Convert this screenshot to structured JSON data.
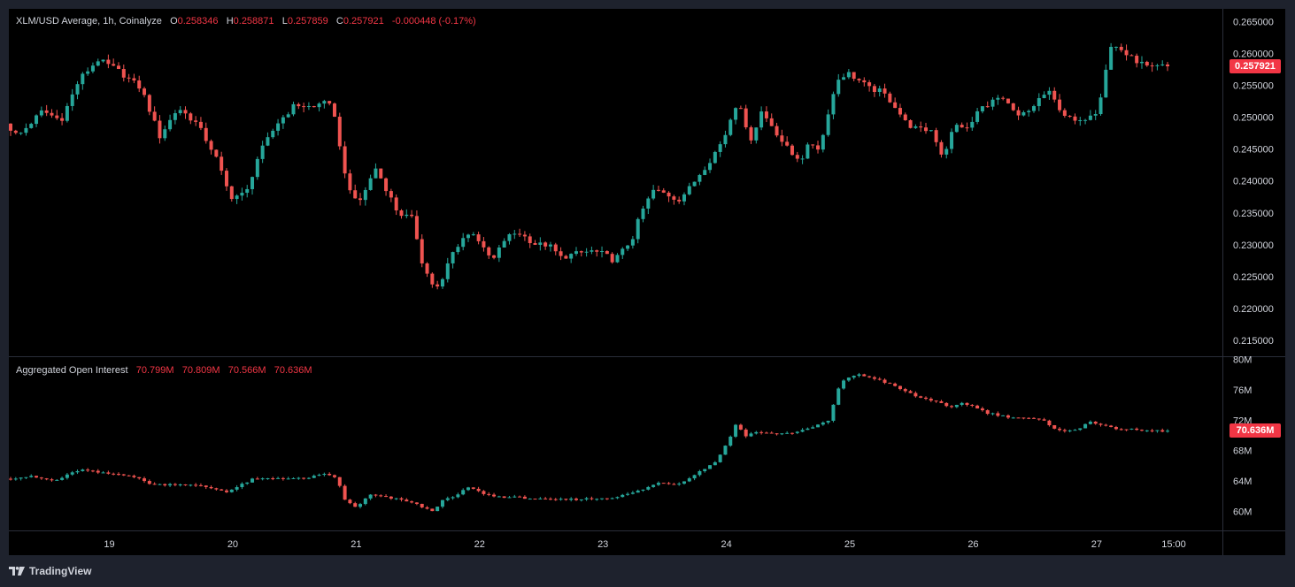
{
  "chart_data": [
    {
      "type": "candlestick",
      "title": "XLM/USD Average, 1h, Coinalyze",
      "legend": {
        "O": "0.258346",
        "H": "0.258871",
        "L": "0.257859",
        "C": "0.257921",
        "change": "-0.000448 (-0.17%)"
      },
      "last_value_label": "0.257921",
      "last_value": 0.257921,
      "yticks": [
        "0.265000",
        "0.260000",
        "0.255000",
        "0.250000",
        "0.245000",
        "0.240000",
        "0.235000",
        "0.230000",
        "0.225000",
        "0.220000",
        "0.215000"
      ],
      "ylim": [
        0.2125,
        0.267
      ],
      "anchors": [
        [
          18.0,
          0.249
        ],
        [
          18.1,
          0.247
        ],
        [
          18.3,
          0.251
        ],
        [
          18.45,
          0.2495
        ],
        [
          18.6,
          0.256
        ],
        [
          18.75,
          0.259
        ],
        [
          18.9,
          0.2575
        ],
        [
          19.1,
          0.2545
        ],
        [
          19.25,
          0.247
        ],
        [
          19.4,
          0.2515
        ],
        [
          19.55,
          0.249
        ],
        [
          19.7,
          0.244
        ],
        [
          19.82,
          0.2375
        ],
        [
          19.95,
          0.238
        ],
        [
          20.05,
          0.244
        ],
        [
          20.2,
          0.249
        ],
        [
          20.35,
          0.252
        ],
        [
          20.5,
          0.2515
        ],
        [
          20.6,
          0.253
        ],
        [
          20.68,
          0.249
        ],
        [
          20.75,
          0.241
        ],
        [
          20.85,
          0.236
        ],
        [
          20.95,
          0.24
        ],
        [
          21.0,
          0.242
        ],
        [
          21.08,
          0.239
        ],
        [
          21.18,
          0.235
        ],
        [
          21.3,
          0.234
        ],
        [
          21.38,
          0.227
        ],
        [
          21.45,
          0.224
        ],
        [
          21.52,
          0.223
        ],
        [
          21.6,
          0.228
        ],
        [
          21.7,
          0.231
        ],
        [
          21.8,
          0.232
        ],
        [
          21.88,
          0.229
        ],
        [
          21.95,
          0.2275
        ],
        [
          22.05,
          0.231
        ],
        [
          22.15,
          0.232
        ],
        [
          22.3,
          0.23
        ],
        [
          22.4,
          0.23
        ],
        [
          22.5,
          0.228
        ],
        [
          22.6,
          0.2285
        ],
        [
          22.75,
          0.229
        ],
        [
          22.85,
          0.2285
        ],
        [
          22.93,
          0.2275
        ],
        [
          23.0,
          0.229
        ],
        [
          23.08,
          0.231
        ],
        [
          23.15,
          0.235
        ],
        [
          23.25,
          0.2385
        ],
        [
          23.35,
          0.238
        ],
        [
          23.45,
          0.237
        ],
        [
          23.55,
          0.239
        ],
        [
          23.62,
          0.241
        ],
        [
          23.7,
          0.243
        ],
        [
          23.8,
          0.246
        ],
        [
          23.85,
          0.248
        ],
        [
          23.9,
          0.2515
        ],
        [
          23.95,
          0.2525
        ],
        [
          24.0,
          0.248
        ],
        [
          24.05,
          0.2465
        ],
        [
          24.12,
          0.251
        ],
        [
          24.2,
          0.249
        ],
        [
          24.3,
          0.246
        ],
        [
          24.38,
          0.244
        ],
        [
          24.45,
          0.2435
        ],
        [
          24.52,
          0.246
        ],
        [
          24.6,
          0.245
        ],
        [
          24.68,
          0.252
        ],
        [
          24.75,
          0.256
        ],
        [
          24.82,
          0.257
        ],
        [
          24.9,
          0.256
        ],
        [
          25.0,
          0.2545
        ],
        [
          25.1,
          0.254
        ],
        [
          25.2,
          0.252
        ],
        [
          25.3,
          0.249
        ],
        [
          25.4,
          0.248
        ],
        [
          25.5,
          0.248
        ],
        [
          25.55,
          0.246
        ],
        [
          25.6,
          0.2435
        ],
        [
          25.65,
          0.247
        ],
        [
          25.72,
          0.249
        ],
        [
          25.8,
          0.248
        ],
        [
          25.88,
          0.251
        ],
        [
          25.95,
          0.252
        ],
        [
          26.05,
          0.253
        ],
        [
          26.12,
          0.252
        ],
        [
          26.2,
          0.25
        ],
        [
          26.3,
          0.251
        ],
        [
          26.38,
          0.253
        ],
        [
          26.45,
          0.254
        ],
        [
          26.52,
          0.252
        ],
        [
          26.6,
          0.25
        ],
        [
          26.7,
          0.249
        ],
        [
          26.78,
          0.2505
        ],
        [
          26.85,
          0.251
        ],
        [
          26.9,
          0.256
        ],
        [
          26.95,
          0.261
        ],
        [
          27.02,
          0.261
        ],
        [
          27.1,
          0.2595
        ],
        [
          27.2,
          0.2585
        ],
        [
          27.28,
          0.2575
        ],
        [
          27.35,
          0.258
        ],
        [
          27.42,
          0.2579
        ]
      ]
    },
    {
      "type": "candlestick",
      "title": "Aggregated Open Interest",
      "legend": {
        "O": "70.799M",
        "H": "70.809M",
        "L": "70.566M",
        "C": "70.636M"
      },
      "last_value_label": "70.636M",
      "last_value": 70.636,
      "yticks": [
        "80M",
        "76M",
        "72M",
        "68M",
        "64M",
        "60M"
      ],
      "ylim": [
        57.5,
        80.3
      ],
      "anchors": [
        [
          18.0,
          64.3
        ],
        [
          18.2,
          64.6
        ],
        [
          18.4,
          64.0
        ],
        [
          18.6,
          65.5
        ],
        [
          18.8,
          65.0
        ],
        [
          19.0,
          64.8
        ],
        [
          19.2,
          63.5
        ],
        [
          19.4,
          63.6
        ],
        [
          19.6,
          63.3
        ],
        [
          19.8,
          62.6
        ],
        [
          20.0,
          64.2
        ],
        [
          20.2,
          64.4
        ],
        [
          20.4,
          64.3
        ],
        [
          20.6,
          64.9
        ],
        [
          20.68,
          64.5
        ],
        [
          20.75,
          61.5
        ],
        [
          20.85,
          60.5
        ],
        [
          20.95,
          62.2
        ],
        [
          21.1,
          61.8
        ],
        [
          21.25,
          61.4
        ],
        [
          21.35,
          60.8
        ],
        [
          21.45,
          60.0
        ],
        [
          21.55,
          61.5
        ],
        [
          21.65,
          62.0
        ],
        [
          21.75,
          63.2
        ],
        [
          21.85,
          62.5
        ],
        [
          21.95,
          62.0
        ],
        [
          22.05,
          61.9
        ],
        [
          22.2,
          61.8
        ],
        [
          22.4,
          61.5
        ],
        [
          22.6,
          61.6
        ],
        [
          22.8,
          61.7
        ],
        [
          22.95,
          61.9
        ],
        [
          23.05,
          62.3
        ],
        [
          23.15,
          62.8
        ],
        [
          23.3,
          63.8
        ],
        [
          23.45,
          63.6
        ],
        [
          23.6,
          65.0
        ],
        [
          23.75,
          66.5
        ],
        [
          23.85,
          69.0
        ],
        [
          23.92,
          71.5
        ],
        [
          24.0,
          70.0
        ],
        [
          24.1,
          70.5
        ],
        [
          24.2,
          70.2
        ],
        [
          24.35,
          70.3
        ],
        [
          24.5,
          70.8
        ],
        [
          24.6,
          71.5
        ],
        [
          24.68,
          72.0
        ],
        [
          24.73,
          75.5
        ],
        [
          24.8,
          77.5
        ],
        [
          24.9,
          78.0
        ],
        [
          25.05,
          77.5
        ],
        [
          25.2,
          76.5
        ],
        [
          25.4,
          75.0
        ],
        [
          25.55,
          74.5
        ],
        [
          25.65,
          73.5
        ],
        [
          25.75,
          74.3
        ],
        [
          25.85,
          73.8
        ],
        [
          25.95,
          73.0
        ],
        [
          26.1,
          72.5
        ],
        [
          26.25,
          72.3
        ],
        [
          26.4,
          72.0
        ],
        [
          26.5,
          71.0
        ],
        [
          26.6,
          70.5
        ],
        [
          26.7,
          70.8
        ],
        [
          26.78,
          72.0
        ],
        [
          26.85,
          71.5
        ],
        [
          26.95,
          71.0
        ],
        [
          27.1,
          70.8
        ],
        [
          27.25,
          70.6
        ],
        [
          27.42,
          70.6
        ]
      ]
    }
  ],
  "time_axis": {
    "labels": [
      {
        "value": 18.8,
        "text": "19"
      },
      {
        "value": 19.8,
        "text": "20"
      },
      {
        "value": 20.8,
        "text": "21"
      },
      {
        "value": 21.8,
        "text": "22"
      },
      {
        "value": 22.8,
        "text": "23"
      },
      {
        "value": 23.8,
        "text": "24"
      },
      {
        "value": 24.8,
        "text": "25"
      },
      {
        "value": 25.8,
        "text": "26"
      },
      {
        "value": 26.8,
        "text": "27"
      },
      {
        "value": 27.425,
        "text": "15:00"
      }
    ]
  },
  "colors": {
    "up": "#26a69a",
    "down": "#ef5350",
    "badge": "#f23645",
    "grid": "#2a2e39",
    "text": "#d1d4dc"
  },
  "branding": {
    "logo": "tradingview-logo-icon",
    "text": "TradingView"
  }
}
